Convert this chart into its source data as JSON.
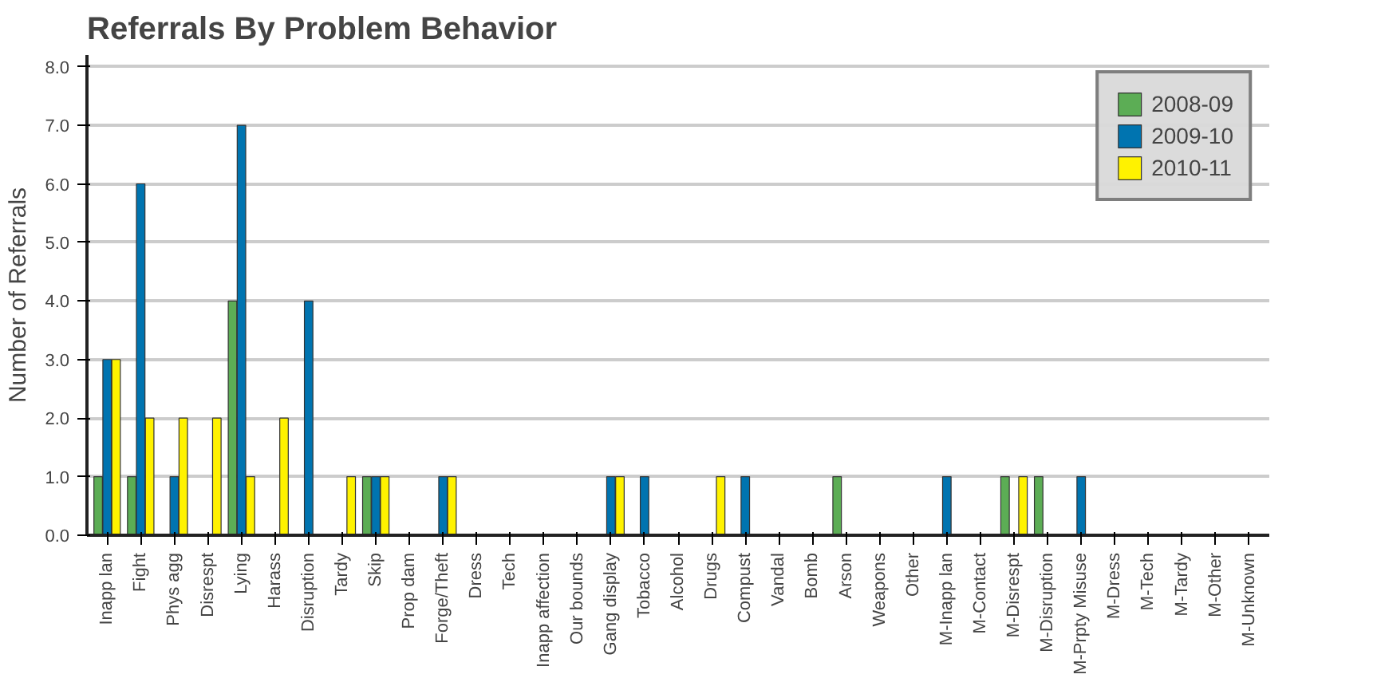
{
  "chart_data": {
    "type": "bar",
    "title": "Referrals By Problem Behavior",
    "ylabel": "Number of Referrals",
    "categories": [
      "Inapp lan",
      "Fight",
      "Phys agg",
      "Disrespt",
      "Lying",
      "Harass",
      "Disruption",
      "Tardy",
      "Skip",
      "Prop dam",
      "Forge/Theft",
      "Dress",
      "Tech",
      "Inapp affection",
      "Our bounds",
      "Gang display",
      "Tobacco",
      "Alcohol",
      "Drugs",
      "Compust",
      "Vandal",
      "Bomb",
      "Arson",
      "Weapons",
      "Other",
      "M-Inapp lan",
      "M-Contact",
      "M-Disrespt",
      "M-Disruption",
      "M-Prpty Misuse",
      "M-Dress",
      "M-Tech",
      "M-Tardy",
      "M-Other",
      "M-Unknown"
    ],
    "series": [
      {
        "name": "2008-09",
        "color": "#5cad55",
        "values": [
          1,
          1,
          0,
          0,
          4,
          0,
          0,
          0,
          1,
          0,
          0,
          0,
          0,
          0,
          0,
          0,
          0,
          0,
          0,
          0,
          0,
          0,
          1,
          0,
          0,
          0,
          0,
          1,
          1,
          0,
          0,
          0,
          0,
          0,
          0
        ]
      },
      {
        "name": "2009-10",
        "color": "#0074b0",
        "values": [
          3,
          6,
          1,
          0,
          7,
          0,
          4,
          0,
          1,
          0,
          1,
          0,
          0,
          0,
          0,
          1,
          1,
          0,
          0,
          1,
          0,
          0,
          0,
          0,
          0,
          1,
          0,
          0,
          0,
          1,
          0,
          0,
          0,
          0,
          0
        ]
      },
      {
        "name": "2010-11",
        "color": "#fff200",
        "values": [
          3,
          2,
          2,
          2,
          1,
          2,
          0,
          1,
          1,
          0,
          1,
          0,
          0,
          0,
          0,
          1,
          0,
          0,
          1,
          0,
          0,
          0,
          0,
          0,
          0,
          0,
          0,
          1,
          0,
          0,
          0,
          0,
          0,
          0,
          0
        ]
      }
    ],
    "ylim": [
      0,
      8.2
    ],
    "yticks": [
      {
        "value": 0,
        "label": "0.0"
      },
      {
        "value": 1,
        "label": "1.0"
      },
      {
        "value": 2,
        "label": "2.0"
      },
      {
        "value": 3,
        "label": "3.0"
      },
      {
        "value": 4,
        "label": "4.0"
      },
      {
        "value": 5,
        "label": "5.0"
      },
      {
        "value": 6,
        "label": "6.0"
      },
      {
        "value": 7,
        "label": "7.0"
      },
      {
        "value": 8,
        "label": "8.0"
      }
    ],
    "grid": "y",
    "legend": "top right"
  }
}
